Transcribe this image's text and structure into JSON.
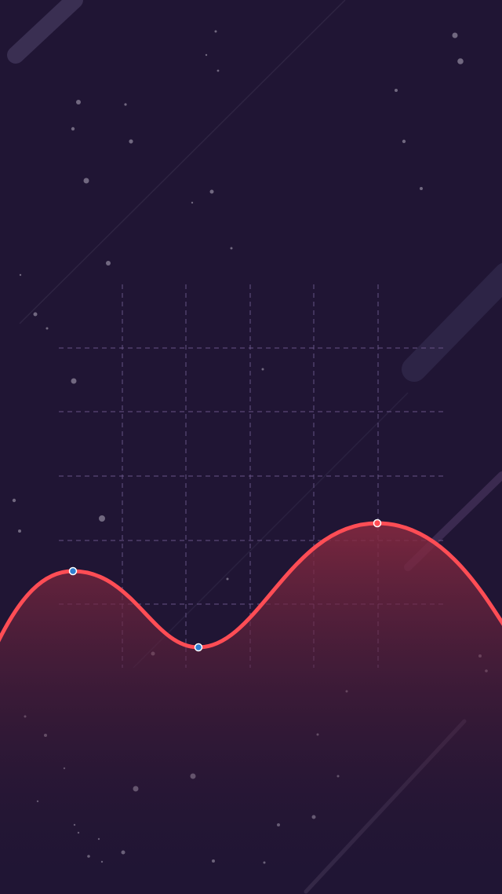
{
  "colors": {
    "background": "#201534",
    "grid_line": "#6d5a8c",
    "curve_stroke": "#ff4d55",
    "fill_top": "#8a2a40",
    "fill_bottom": "#201534",
    "marker_blue": "#2f7fd0",
    "marker_red": "#ff4d55",
    "marker_ring": "#ffffff",
    "streak": "#3a2f52",
    "star": "#8c8499"
  },
  "decorations": {
    "grid": "dashed",
    "stars": true,
    "diagonal_streaks": true
  },
  "chart_data": {
    "type": "area",
    "title": "",
    "xlabel": "",
    "ylabel": "",
    "grid": true,
    "markers": [
      {
        "name": "peak-left",
        "color": "blue"
      },
      {
        "name": "valley",
        "color": "blue"
      },
      {
        "name": "peak-right",
        "color": "red"
      }
    ]
  }
}
